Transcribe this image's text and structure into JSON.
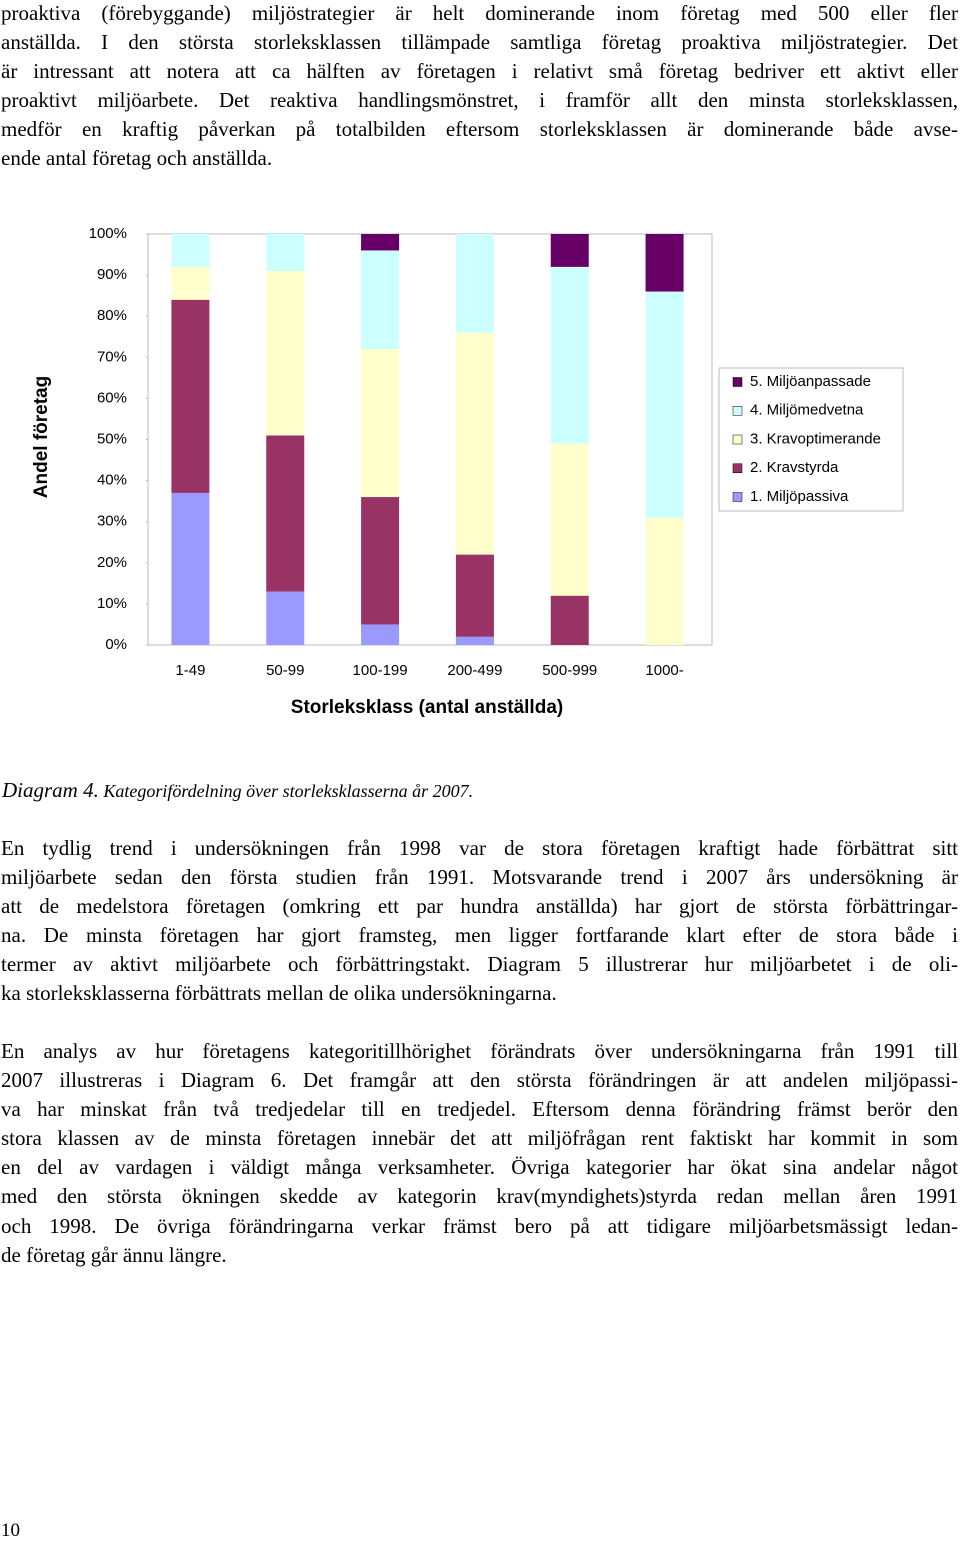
{
  "paragraphs": [
    {
      "lines": [
        "proaktiva (förebyggande) miljöstrategier är helt dominerande inom företag med 500 eller fler",
        "anställda. I den största storleksklassen tillämpade samtliga företag proaktiva miljöstrategier. Det",
        "är intressant att notera att ca hälften av företagen i relativt små företag bedriver ett aktivt eller",
        "proaktivt miljöarbete. Det reaktiva handlingsmönstret, i framför allt den minsta storleksklassen,",
        "medför en kraftig påverkan på totalbilden eftersom storleksklassen är dominerande både avse-",
        "ende antal företag och anställda."
      ]
    },
    {
      "lines": [
        "En tydlig trend i undersökningen från 1998 var de stora företagen kraftigt hade förbättrat sitt",
        "miljöarbete sedan den första studien från 1991. Motsvarande trend i 2007 års undersökning är",
        "att de medelstora företagen (omkring ett par hundra anställda) har gjort de största förbättringar-",
        "na. De minsta företagen har gjort framsteg, men ligger fortfarande klart efter de stora både i",
        "termer av aktivt miljöarbete och förbättringstakt. Diagram 5 illustrerar hur miljöarbetet i de oli-",
        "ka storleksklasserna förbättrats mellan de olika undersökningarna."
      ]
    },
    {
      "lines": [
        "En analys av hur företagens kategoritillhörighet förändrats över undersökningarna från 1991 till",
        "2007 illustreras i Diagram 6. Det framgår att den största förändringen är att andelen miljöpassi-",
        "va har minskat från två tredjedelar till en tredjedel. Eftersom denna förändring främst berör den",
        "stora klassen av de minsta företagen innebär det att miljöfrågan rent faktiskt har kommit in som",
        "en del av vardagen i väldigt många verksamheter. Övriga kategorier har ökat sina andelar något",
        "med den största ökningen skedde av kategorin krav(myndighets)styrda redan mellan åren 1991",
        "och 1998. De övriga förändringarna verkar främst bero på att tidigare miljöarbetsmässigt ledan-",
        "de företag går ännu längre."
      ]
    }
  ],
  "chart_data": {
    "type": "stacked_bar",
    "x_label": "Storleksklass (antal anställda)",
    "y_label": "Andel företag",
    "categories": [
      "1-49",
      "50-99",
      "100-199",
      "200-499",
      "500-999",
      "1000-"
    ],
    "series": [
      {
        "name": "1. Miljöpassiva",
        "color": "#9999ff",
        "values": [
          37,
          13,
          5,
          2,
          0,
          0
        ]
      },
      {
        "name": "2. Kravstyrda",
        "color": "#993366",
        "values": [
          47,
          38,
          31,
          20,
          12,
          0
        ]
      },
      {
        "name": "3. Kravoptimerande",
        "color": "#ffffcc",
        "values": [
          8,
          40,
          36,
          54,
          37,
          31
        ]
      },
      {
        "name": "4. Miljömedvetna",
        "color": "#ccffff",
        "values": [
          8,
          9,
          24,
          24,
          43,
          55
        ]
      },
      {
        "name": "5. Miljöanpassade",
        "color": "#660066",
        "values": [
          0,
          0,
          4,
          0,
          8,
          14
        ]
      }
    ],
    "ylim": [
      0,
      100
    ],
    "yticks": [
      {
        "value": 0,
        "label": "0%"
      },
      {
        "value": 10,
        "label": "10%"
      },
      {
        "value": 20,
        "label": "20%"
      },
      {
        "value": 30,
        "label": "30%"
      },
      {
        "value": 40,
        "label": "40%"
      },
      {
        "value": 50,
        "label": "50%"
      },
      {
        "value": 60,
        "label": "60%"
      },
      {
        "value": 70,
        "label": "70%"
      },
      {
        "value": 80,
        "label": "80%"
      },
      {
        "value": 90,
        "label": "90%"
      },
      {
        "value": 100,
        "label": "100%"
      }
    ],
    "grid": false,
    "legend": "right"
  },
  "caption": {
    "label": "Diagram 4.",
    "text": "Kategorifördelning över storleksklasserna år 2007."
  },
  "page_number": "10"
}
